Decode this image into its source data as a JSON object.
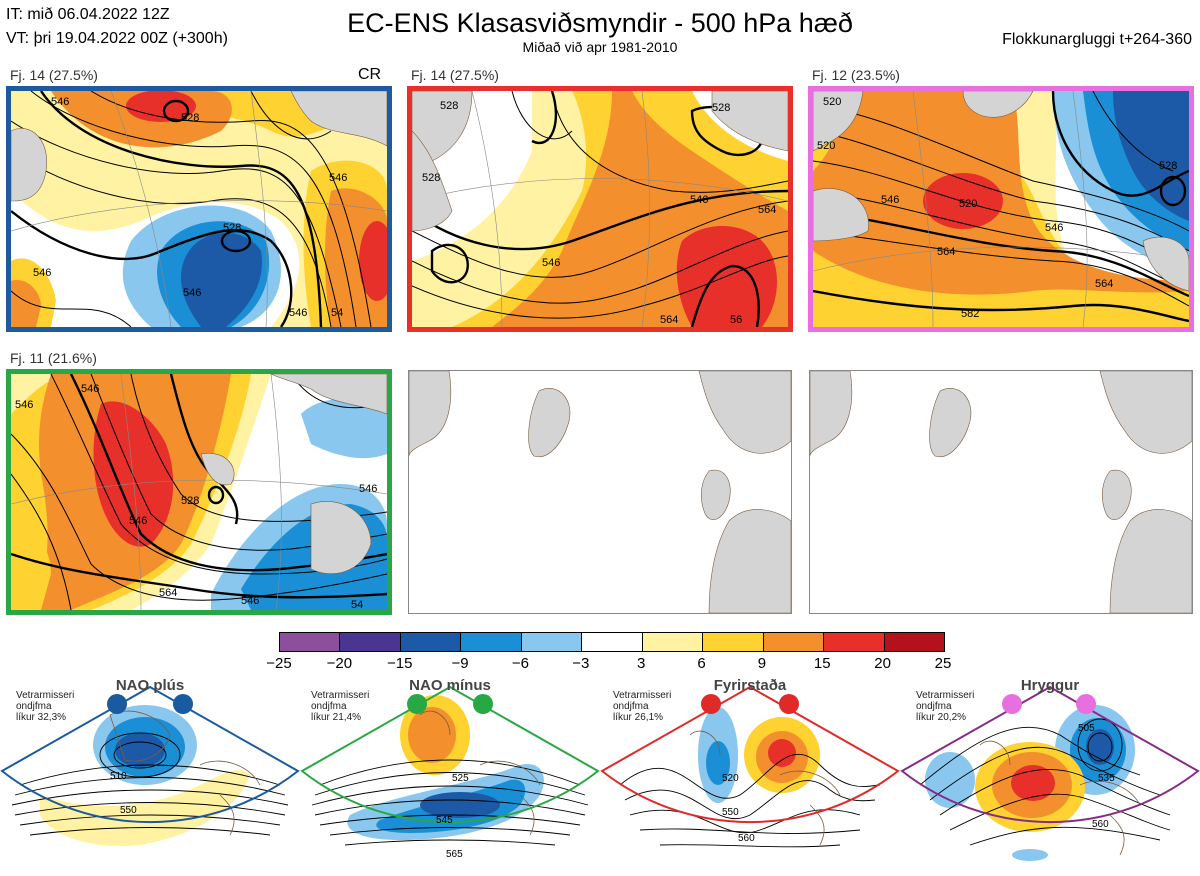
{
  "header": {
    "it_line": "IT: mið 06.04.2022 12Z",
    "vt_line": "VT: þri 19.04.2022 00Z  (+300h)",
    "title": "EC-ENS Klasasviðsmyndir - 500 hPa hæð",
    "subtitle": "Miðað við apr 1981-2010",
    "window": "Flokkunargluggi t+264-360"
  },
  "panels": [
    {
      "label": "Fj. 14 (27.5%)",
      "tag": "CR",
      "frame_color": "#1e5aa0",
      "contour_labels": [
        "546",
        "528",
        "546",
        "546",
        "528",
        "546",
        "546",
        "54"
      ]
    },
    {
      "label": "Fj. 14 (27.5%)",
      "frame_color": "#e8302a",
      "contour_labels": [
        "528",
        "528",
        "546",
        "564",
        "546",
        "528",
        "564",
        "56"
      ]
    },
    {
      "label": "Fj. 12 (23.5%)",
      "frame_color": "#e86fe0",
      "contour_labels": [
        "520",
        "520",
        "528",
        "546",
        "520",
        "546",
        "564",
        "564",
        "582"
      ]
    },
    {
      "label": "Fj. 11 (21.6%)",
      "frame_color": "#28a844",
      "contour_labels": [
        "546",
        "546",
        "528",
        "546",
        "564",
        "546",
        "546",
        "54"
      ]
    },
    {
      "label": "",
      "frame_color": "#888888",
      "contour_labels": []
    },
    {
      "label": "",
      "frame_color": "#888888",
      "contour_labels": []
    }
  ],
  "colorbar": {
    "ticks": [
      "−25",
      "−20",
      "−15",
      "−9",
      "−6",
      "−3",
      "3",
      "6",
      "9",
      "15",
      "20",
      "25"
    ],
    "colors": [
      "#8c4f9e",
      "#4a3591",
      "#1c5aa8",
      "#1a8fd6",
      "#89c7ee",
      "#ffffff",
      "#fff3a3",
      "#fed230",
      "#f3902d",
      "#e8302a",
      "#b3121c"
    ]
  },
  "regimes": [
    {
      "name": "NAO plús",
      "season": "Vetrarmisseri",
      "kind": "ondjfma",
      "prob": "líkur 32,3%",
      "dot_color": "#1a5aa0",
      "frame_color": "#1a5aa0",
      "labels": [
        "510",
        "550"
      ]
    },
    {
      "name": "NAO mínus",
      "season": "Vetrarmisseri",
      "kind": "ondjfma",
      "prob": "líkur 21,4%",
      "dot_color": "#28a844",
      "frame_color": "#28a844",
      "labels": [
        "525",
        "545",
        "565"
      ]
    },
    {
      "name": "Fyrirstaða",
      "season": "Vetrarmisseri",
      "kind": "ondjfma",
      "prob": "líkur 26,1%",
      "dot_color": "#e02a28",
      "frame_color": "#e02a28",
      "labels": [
        "520",
        "550",
        "560"
      ]
    },
    {
      "name": "Hryggur",
      "season": "Vetrarmisseri",
      "kind": "ondjfma",
      "prob": "líkur 20,2%",
      "dot_color": "#e86fe0",
      "frame_color": "#882b86",
      "labels": [
        "505",
        "535",
        "560"
      ]
    }
  ]
}
